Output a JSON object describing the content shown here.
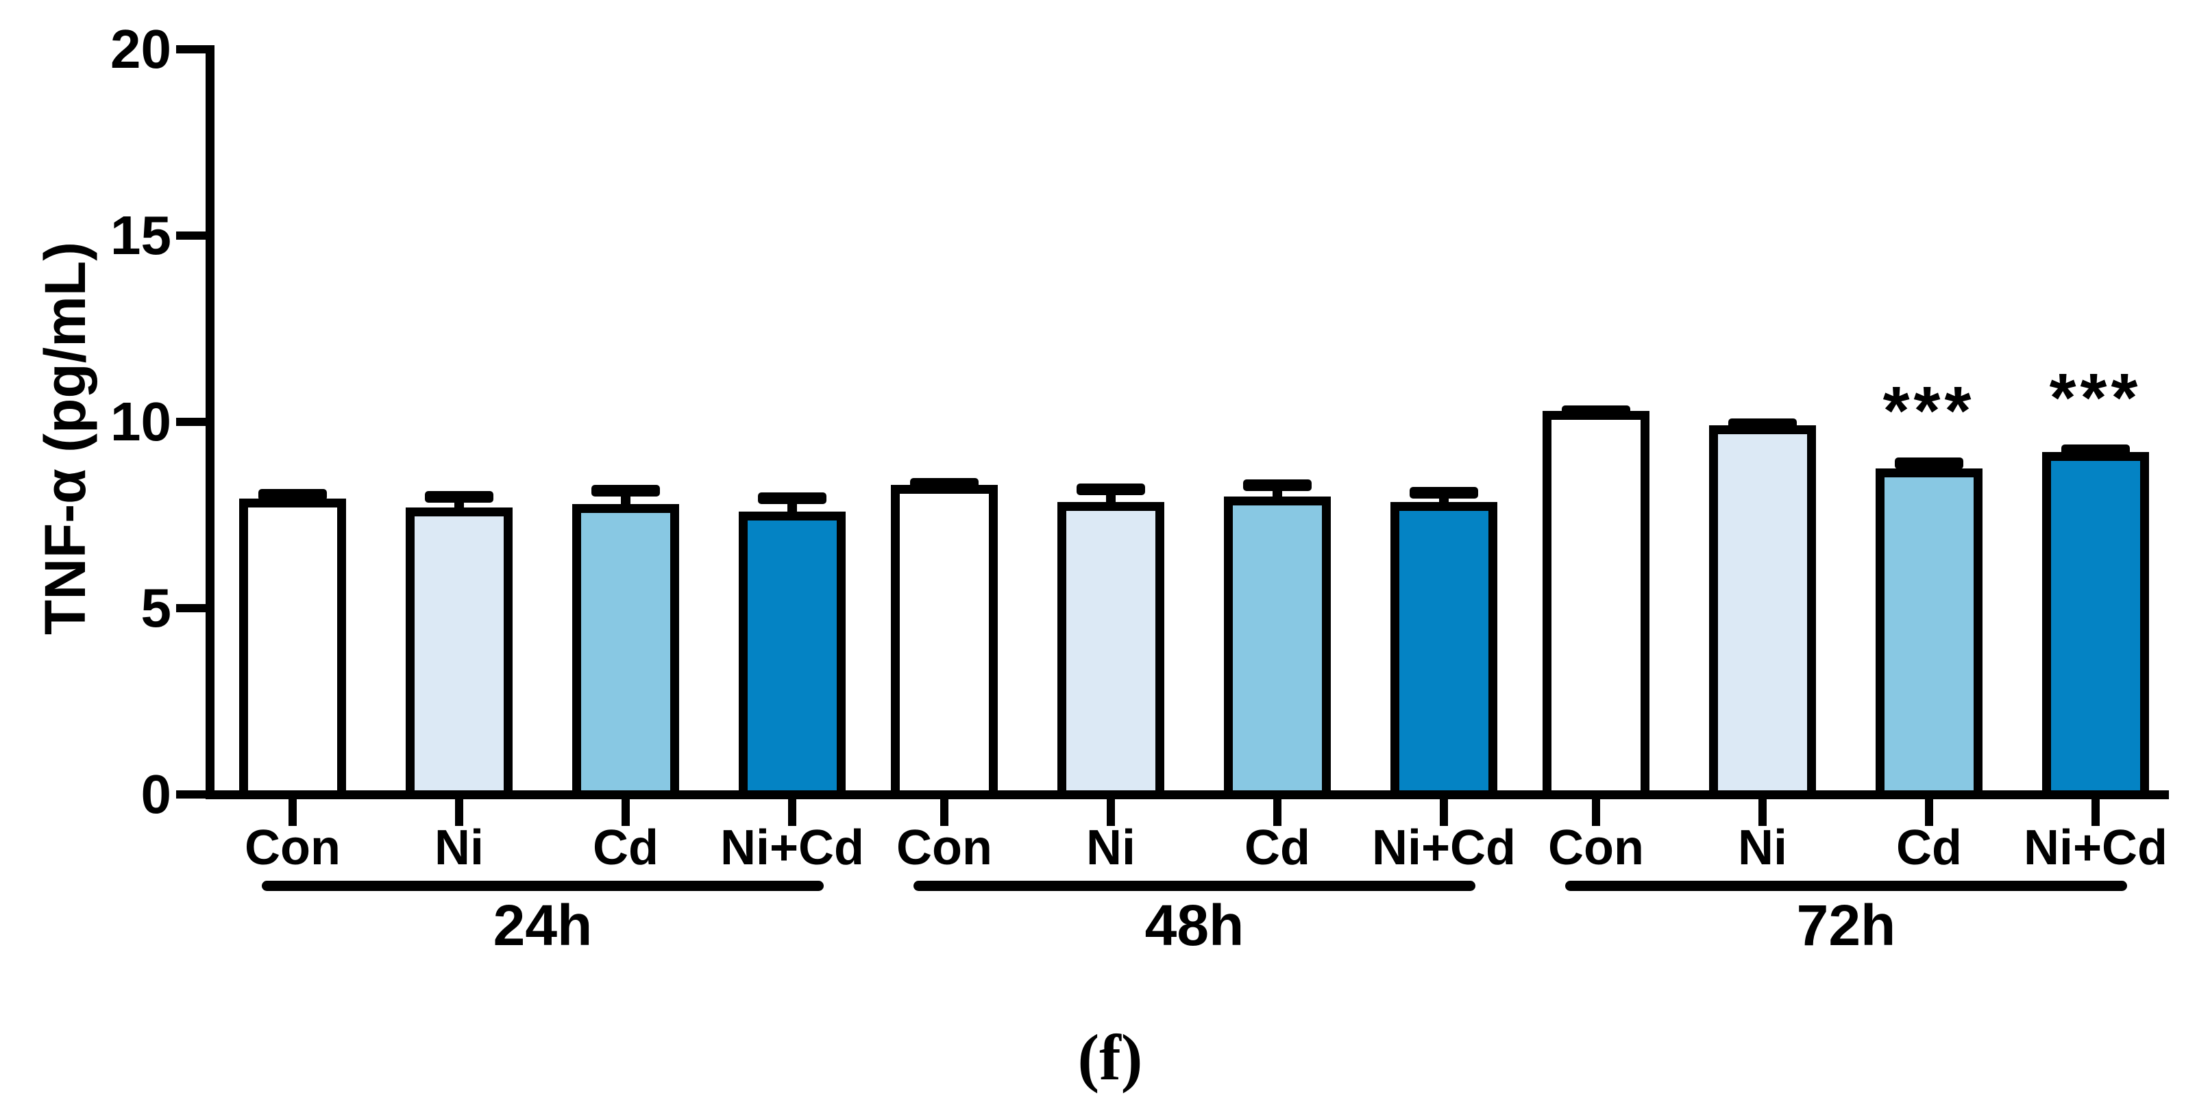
{
  "figure": {
    "caption": "(f)"
  },
  "chart_data": {
    "type": "bar",
    "title": "",
    "ylabel": "TNF-α (pg/mL)",
    "xlabel": "",
    "ylim": [
      0,
      20
    ],
    "yticks": [
      0,
      5,
      10,
      15,
      20
    ],
    "grid": false,
    "legend_position": "none",
    "bar_border_color": "#000000",
    "axis_color": "#000000",
    "series_colors": {
      "Con": "#FFFFFF",
      "Ni": "#DCE9F5",
      "Cd": "#88C8E3",
      "Ni+Cd": "#0483C4"
    },
    "categories": [
      "Con",
      "Ni",
      "Cd",
      "Ni+Cd"
    ],
    "groups": [
      {
        "label": "24h",
        "bars": [
          {
            "category": "Con",
            "value": 7.95,
            "error": 0.25,
            "sig": ""
          },
          {
            "category": "Ni",
            "value": 7.7,
            "error": 0.45,
            "sig": ""
          },
          {
            "category": "Cd",
            "value": 7.8,
            "error": 0.5,
            "sig": ""
          },
          {
            "category": "Ni+Cd",
            "value": 7.6,
            "error": 0.5,
            "sig": ""
          }
        ]
      },
      {
        "label": "48h",
        "bars": [
          {
            "category": "Con",
            "value": 8.3,
            "error": 0.2,
            "sig": ""
          },
          {
            "category": "Ni",
            "value": 7.85,
            "error": 0.5,
            "sig": ""
          },
          {
            "category": "Cd",
            "value": 8.0,
            "error": 0.45,
            "sig": ""
          },
          {
            "category": "Ni+Cd",
            "value": 7.85,
            "error": 0.4,
            "sig": ""
          }
        ]
      },
      {
        "label": "72h",
        "bars": [
          {
            "category": "Con",
            "value": 10.3,
            "error": 0.15,
            "sig": ""
          },
          {
            "category": "Ni",
            "value": 9.9,
            "error": 0.2,
            "sig": ""
          },
          {
            "category": "Cd",
            "value": 8.75,
            "error": 0.3,
            "sig": "***"
          },
          {
            "category": "Ni+Cd",
            "value": 9.2,
            "error": 0.2,
            "sig": "***"
          }
        ]
      }
    ]
  }
}
